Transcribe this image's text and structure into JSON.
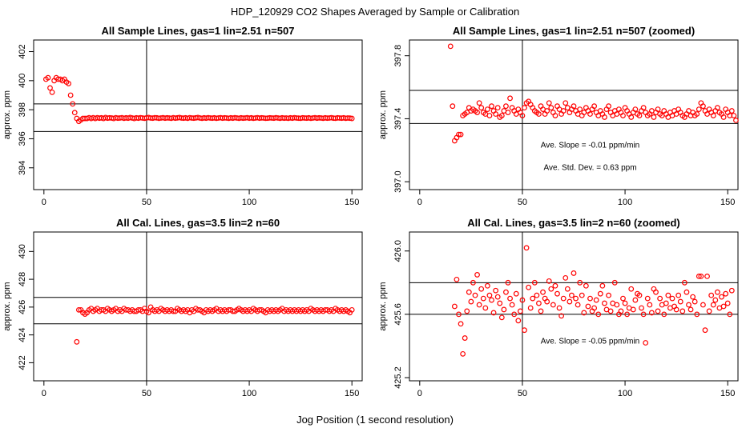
{
  "figure": {
    "title": "HDP_120929  CO2 Shapes Averaged by Sample or Calibration",
    "xlabel": "Jog Position (1 second resolution)",
    "colors": {
      "points": "#ff0000",
      "lines": "#000000"
    }
  },
  "chart_data": [
    {
      "type": "scatter",
      "title": "All Sample Lines, gas=1 lin=2.51 n=507",
      "ylabel": "approx. ppm",
      "xlim": [
        -5,
        155
      ],
      "ylim": [
        392.5,
        402.8
      ],
      "xticks": [
        0,
        50,
        100,
        150
      ],
      "yticks": [
        394,
        396,
        398,
        400,
        402
      ],
      "vline": 50,
      "hlines": [
        396.5,
        398.4
      ],
      "annotations": [],
      "x_start": 1,
      "y": [
        400.1,
        400.2,
        399.5,
        399.2,
        400.0,
        400.2,
        400.1,
        400.1,
        400.0,
        400.1,
        399.9,
        399.8,
        399.0,
        398.4,
        397.8,
        397.4,
        397.2,
        397.3,
        397.4,
        397.4,
        397.4,
        397.45,
        397.4,
        397.45,
        397.4,
        397.45,
        397.42,
        397.44,
        397.4,
        397.46,
        397.42,
        397.44,
        397.43,
        397.4,
        397.45,
        397.42,
        397.43,
        397.45,
        397.41,
        397.44,
        397.42,
        397.46,
        397.43,
        397.4,
        397.44,
        397.42,
        397.45,
        397.43,
        397.41,
        397.44,
        397.46,
        397.43,
        397.42,
        397.45,
        397.44,
        397.41,
        397.43,
        397.45,
        397.42,
        397.44,
        397.43,
        397.41,
        397.45,
        397.42,
        397.44,
        397.46,
        397.43,
        397.42,
        397.44,
        397.41,
        397.45,
        397.43,
        397.42,
        397.44,
        397.46,
        397.43,
        397.41,
        397.44,
        397.42,
        397.45,
        397.43,
        397.42,
        397.44,
        397.41,
        397.43,
        397.45,
        397.42,
        397.44,
        397.43,
        397.41,
        397.44,
        397.42,
        397.45,
        397.43,
        397.41,
        397.44,
        397.42,
        397.43,
        397.45,
        397.42,
        397.44,
        397.41,
        397.43,
        397.45,
        397.42,
        397.44,
        397.43,
        397.41,
        397.42,
        397.44,
        397.43,
        397.42,
        397.45,
        397.43,
        397.41,
        397.44,
        397.42,
        397.43,
        397.41,
        397.44,
        397.42,
        397.45,
        397.43,
        397.42,
        397.41,
        397.44,
        397.43,
        397.42,
        397.44,
        397.41,
        397.43,
        397.45,
        397.42,
        397.44,
        397.43,
        397.41,
        397.44,
        397.42,
        397.43,
        397.45,
        397.42,
        397.41,
        397.44,
        397.43,
        397.42,
        397.44,
        397.41,
        397.43,
        397.42,
        397.4
      ]
    },
    {
      "type": "scatter",
      "title": "All Sample Lines, gas=1 lin=2.51 n=507 (zoomed)",
      "ylabel": "approx. ppm",
      "xlim": [
        -5,
        155
      ],
      "ylim": [
        396.95,
        397.9
      ],
      "xticks": [
        0,
        50,
        100,
        150
      ],
      "yticks": [
        397.0,
        397.4,
        397.8
      ],
      "ytick_labels": [
        "397.0",
        "397.4",
        "397.8"
      ],
      "vline": 50,
      "hlines": [
        397.37,
        397.58
      ],
      "annotations": [
        "Ave. Slope =  -0.01  ppm/min",
        "Ave. Std. Dev. =  0.63  ppm"
      ],
      "x_start": 15,
      "y": [
        397.86,
        397.48,
        397.26,
        397.28,
        397.3,
        397.3,
        397.42,
        397.43,
        397.44,
        397.47,
        397.45,
        397.46,
        397.45,
        397.44,
        397.5,
        397.47,
        397.44,
        397.43,
        397.46,
        397.42,
        397.48,
        397.45,
        397.43,
        397.47,
        397.41,
        397.42,
        397.45,
        397.48,
        397.44,
        397.53,
        397.47,
        397.45,
        397.43,
        397.46,
        397.44,
        397.42,
        397.47,
        397.5,
        397.51,
        397.49,
        397.47,
        397.45,
        397.44,
        397.43,
        397.48,
        397.46,
        397.43,
        397.45,
        397.5,
        397.47,
        397.44,
        397.42,
        397.48,
        397.46,
        397.43,
        397.45,
        397.5,
        397.47,
        397.44,
        397.46,
        397.48,
        397.45,
        397.43,
        397.46,
        397.42,
        397.44,
        397.47,
        397.45,
        397.43,
        397.46,
        397.48,
        397.44,
        397.42,
        397.45,
        397.43,
        397.41,
        397.46,
        397.48,
        397.44,
        397.42,
        397.45,
        397.43,
        397.46,
        397.44,
        397.42,
        397.47,
        397.45,
        397.43,
        397.41,
        397.44,
        397.46,
        397.43,
        397.42,
        397.45,
        397.47,
        397.44,
        397.42,
        397.43,
        397.45,
        397.41,
        397.44,
        397.46,
        397.43,
        397.42,
        397.45,
        397.43,
        397.41,
        397.44,
        397.42,
        397.45,
        397.43,
        397.46,
        397.44,
        397.42,
        397.41,
        397.43,
        397.45,
        397.42,
        397.44,
        397.42,
        397.43,
        397.46,
        397.5,
        397.48,
        397.45,
        397.43,
        397.46,
        397.44,
        397.42,
        397.45,
        397.47,
        397.44,
        397.43,
        397.41,
        397.46,
        397.44,
        397.42,
        397.45,
        397.42,
        397.39
      ]
    },
    {
      "type": "scatter",
      "title": "All Cal. Lines, gas=3.5 lin=2 n=60",
      "ylabel": "approx. ppm",
      "xlim": [
        -5,
        155
      ],
      "ylim": [
        420.7,
        431.4
      ],
      "xticks": [
        0,
        50,
        100,
        150
      ],
      "yticks": [
        422,
        424,
        426,
        428,
        430
      ],
      "vline": 50,
      "hlines": [
        424.8,
        426.7
      ],
      "annotations": [],
      "x_start": 16,
      "y": [
        423.5,
        425.8,
        425.8,
        425.6,
        425.5,
        425.6,
        425.8,
        425.9,
        425.7,
        425.8,
        425.9,
        425.7,
        425.8,
        425.8,
        425.7,
        425.9,
        425.8,
        425.7,
        425.8,
        425.9,
        425.7,
        425.8,
        425.7,
        425.9,
        425.8,
        425.8,
        425.7,
        425.8,
        425.7,
        425.7,
        425.8,
        425.8,
        425.7,
        425.9,
        425.7,
        425.6,
        426.0,
        425.8,
        425.7,
        425.8,
        425.7,
        425.9,
        425.8,
        425.7,
        425.8,
        425.7,
        425.8,
        425.7,
        425.7,
        425.9,
        425.8,
        425.7,
        425.8,
        425.7,
        425.8,
        425.6,
        425.8,
        425.7,
        425.9,
        425.8,
        425.8,
        425.7,
        425.6,
        425.8,
        425.7,
        425.8,
        425.7,
        425.8,
        425.9,
        425.7,
        425.8,
        425.7,
        425.8,
        425.7,
        425.8,
        425.8,
        425.7,
        425.7,
        425.8,
        425.9,
        425.8,
        425.7,
        425.8,
        425.7,
        425.8,
        425.7,
        425.9,
        425.8,
        425.7,
        425.8,
        425.8,
        425.7,
        425.6,
        425.8,
        425.7,
        425.8,
        425.7,
        425.8,
        425.7,
        425.8,
        425.9,
        425.7,
        425.8,
        425.7,
        425.8,
        425.7,
        425.8,
        425.7,
        425.8,
        425.7,
        425.8,
        425.7,
        425.8,
        425.7,
        425.9,
        425.8,
        425.7,
        425.8,
        425.7,
        425.8,
        425.7,
        425.8,
        425.8,
        425.7,
        425.8,
        425.7,
        425.9,
        425.8,
        425.7,
        425.8,
        425.7,
        425.8,
        425.7,
        425.6,
        425.8
      ]
    },
    {
      "type": "scatter",
      "title": "All Cal. Lines, gas=3.5 lin=2 n=60 (zoomed)",
      "ylabel": "approx. ppm",
      "xlim": [
        -5,
        155
      ],
      "ylim": [
        425.18,
        426.12
      ],
      "xticks": [
        0,
        50,
        100,
        150
      ],
      "yticks": [
        425.2,
        425.6,
        426.0
      ],
      "ytick_labels": [
        "425.2",
        "425.6",
        "426.0"
      ],
      "vline": 50,
      "hlines": [
        425.6,
        425.8
      ],
      "annotations": [
        "Ave. Slope =  -0.05  ppm/min"
      ],
      "x_start": 17,
      "y": [
        425.65,
        425.82,
        425.6,
        425.54,
        425.35,
        425.45,
        425.62,
        425.74,
        425.68,
        425.8,
        425.72,
        425.85,
        425.66,
        425.76,
        425.7,
        425.64,
        425.78,
        425.72,
        425.69,
        425.61,
        425.75,
        425.71,
        425.67,
        425.58,
        425.63,
        425.74,
        425.8,
        425.7,
        425.66,
        425.6,
        425.73,
        425.56,
        425.62,
        425.69,
        425.5,
        426.02,
        425.77,
        425.64,
        425.7,
        425.8,
        425.72,
        425.67,
        425.62,
        425.74,
        425.7,
        425.68,
        425.81,
        425.76,
        425.66,
        425.78,
        425.73,
        425.64,
        425.59,
        425.7,
        425.83,
        425.76,
        425.68,
        425.72,
        425.86,
        425.7,
        425.66,
        425.8,
        425.72,
        425.61,
        425.78,
        425.65,
        425.7,
        425.62,
        425.64,
        425.69,
        425.6,
        425.73,
        425.78,
        425.67,
        425.63,
        425.72,
        425.62,
        425.67,
        425.8,
        425.66,
        425.6,
        425.62,
        425.7,
        425.67,
        425.6,
        425.64,
        425.76,
        425.63,
        425.69,
        425.73,
        425.72,
        425.64,
        425.6,
        425.42,
        425.7,
        425.66,
        425.61,
        425.76,
        425.74,
        425.62,
        425.7,
        425.66,
        425.6,
        425.67,
        425.72,
        425.64,
        425.7,
        425.65,
        425.63,
        425.72,
        425.68,
        425.62,
        425.8,
        425.74,
        425.66,
        425.63,
        425.71,
        425.68,
        425.6,
        425.84,
        425.84,
        425.66,
        425.5,
        425.84,
        425.62,
        425.72,
        425.66,
        425.69,
        425.74,
        425.64,
        425.71,
        425.65,
        425.73,
        425.67,
        425.6,
        425.75
      ]
    }
  ]
}
